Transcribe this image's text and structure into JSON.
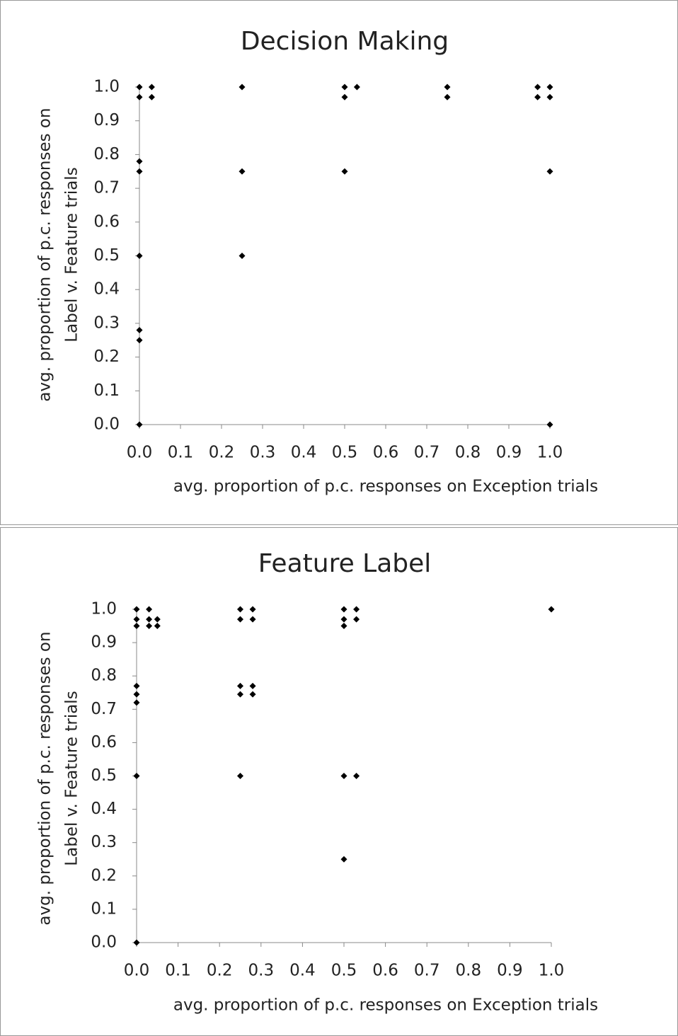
{
  "chart_data": [
    {
      "type": "scatter",
      "title": "Decision Making",
      "xlabel": "avg. proportion of p.c. responses on Exception trials",
      "ylabel": [
        "avg. proportion of p.c. responses on",
        "Label v. Feature trials"
      ],
      "color": "#000000",
      "x": [
        0,
        0.03,
        0,
        0.03,
        0.25,
        0.5,
        0.53,
        0.5,
        0.75,
        0.75,
        0.97,
        1,
        0.97,
        1,
        0,
        0,
        0.25,
        0.5,
        1,
        0,
        0.25,
        0,
        0,
        0,
        1
      ],
      "values": [
        1,
        1,
        0.97,
        0.97,
        1,
        1,
        1,
        0.97,
        1,
        0.97,
        1,
        1,
        0.97,
        0.97,
        0.78,
        0.75,
        0.75,
        0.75,
        0.75,
        0.5,
        0.5,
        0.28,
        0.25,
        0,
        0
      ],
      "xlim": [
        0,
        1
      ],
      "ylim": [
        0,
        1
      ],
      "xticks": [
        {
          "value": 0,
          "label": "0.0"
        },
        0.1,
        0.2,
        0.3,
        0.4,
        0.5,
        0.6,
        0.7,
        0.8,
        0.9,
        {
          "value": 1,
          "label": "1.0"
        }
      ],
      "yticks": [
        {
          "value": 0,
          "label": "0.0"
        },
        0.1,
        0.2,
        0.3,
        0.4,
        0.5,
        0.6,
        0.7,
        0.8,
        0.9,
        {
          "value": 1,
          "label": "1.0"
        }
      ],
      "grid": false
    },
    {
      "type": "scatter",
      "title": "Feature Label",
      "xlabel": "avg. proportion of p.c. responses on Exception trials",
      "ylabel": [
        "avg. proportion of p.c. responses on",
        "Label v. Feature trials"
      ],
      "color": "#000000",
      "x": [
        0,
        0.03,
        0,
        0.03,
        0.05,
        0,
        0.03,
        0.05,
        0.25,
        0.28,
        0.25,
        0.28,
        0.5,
        0.53,
        0.5,
        0.53,
        0.5,
        1,
        0,
        0,
        0,
        0.25,
        0.28,
        0.25,
        0.28,
        0,
        0.25,
        0.5,
        0.53,
        0.5,
        0
      ],
      "values": [
        1,
        1,
        0.97,
        0.97,
        0.97,
        0.95,
        0.95,
        0.95,
        1,
        1,
        0.97,
        0.97,
        1,
        1,
        0.97,
        0.97,
        0.95,
        1,
        0.77,
        0.745,
        0.72,
        0.77,
        0.77,
        0.745,
        0.745,
        0.5,
        0.5,
        0.5,
        0.5,
        0.25,
        0
      ],
      "xlim": [
        0,
        1
      ],
      "ylim": [
        0,
        1
      ],
      "xticks": [
        {
          "value": 0,
          "label": "0.0"
        },
        0.1,
        0.2,
        0.3,
        0.4,
        0.5,
        0.6,
        0.7,
        0.8,
        0.9,
        {
          "value": 1,
          "label": "1.0"
        }
      ],
      "yticks": [
        {
          "value": 0,
          "label": "0.0"
        },
        0.1,
        0.2,
        0.3,
        0.4,
        0.5,
        0.6,
        0.7,
        0.8,
        0.9,
        {
          "value": 1,
          "label": "1.0"
        }
      ],
      "grid": false
    }
  ]
}
